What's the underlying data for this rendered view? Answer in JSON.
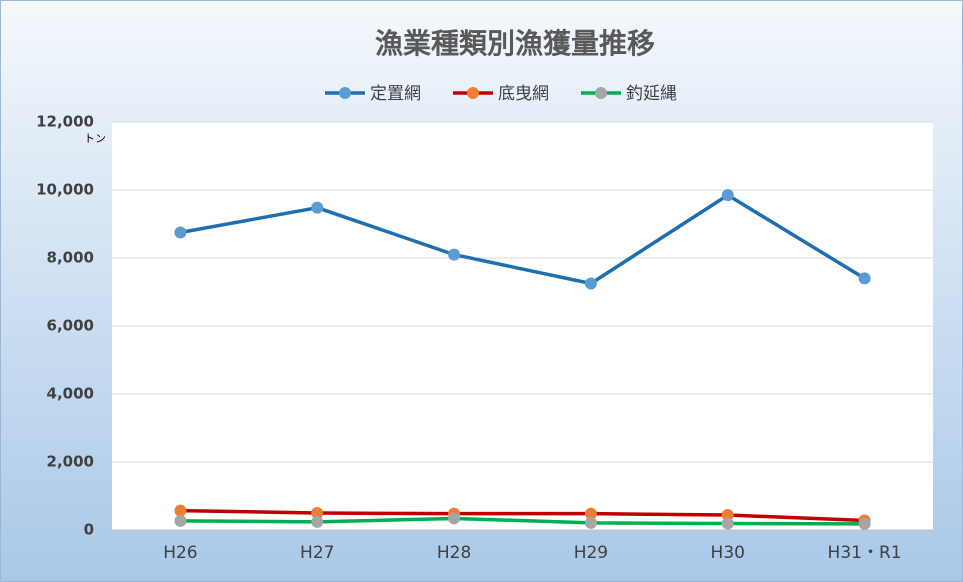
{
  "chart_data": {
    "type": "line",
    "title": "漁業種類別漁獲量推移",
    "y_unit": "トン",
    "categories": [
      "H26",
      "H27",
      "H28",
      "H29",
      "H30",
      "H31・R1"
    ],
    "series": [
      {
        "name": "定置網",
        "color": "#1f6fb0",
        "marker_color": "#5b9bd5",
        "values": [
          8750,
          9480,
          8100,
          7250,
          9850,
          7400
        ]
      },
      {
        "name": "底曳網",
        "color": "#c00000",
        "marker_color": "#ed7d31",
        "values": [
          570,
          500,
          480,
          480,
          440,
          280
        ]
      },
      {
        "name": "釣延縄",
        "color": "#00b050",
        "marker_color": "#a5a5a5",
        "values": [
          270,
          240,
          340,
          210,
          190,
          180
        ]
      }
    ],
    "ylim": [
      0,
      12000
    ],
    "yticks": [
      0,
      {
        "value": 2000,
        "label": "2,000"
      },
      {
        "value": 4000,
        "label": "4,000"
      },
      {
        "value": 6000,
        "label": "6,000"
      },
      {
        "value": 8000,
        "label": "8,000"
      },
      {
        "value": 10000,
        "label": "10,000"
      },
      {
        "value": 12000,
        "label": "12,000"
      }
    ],
    "grid": true,
    "legend": "top"
  }
}
